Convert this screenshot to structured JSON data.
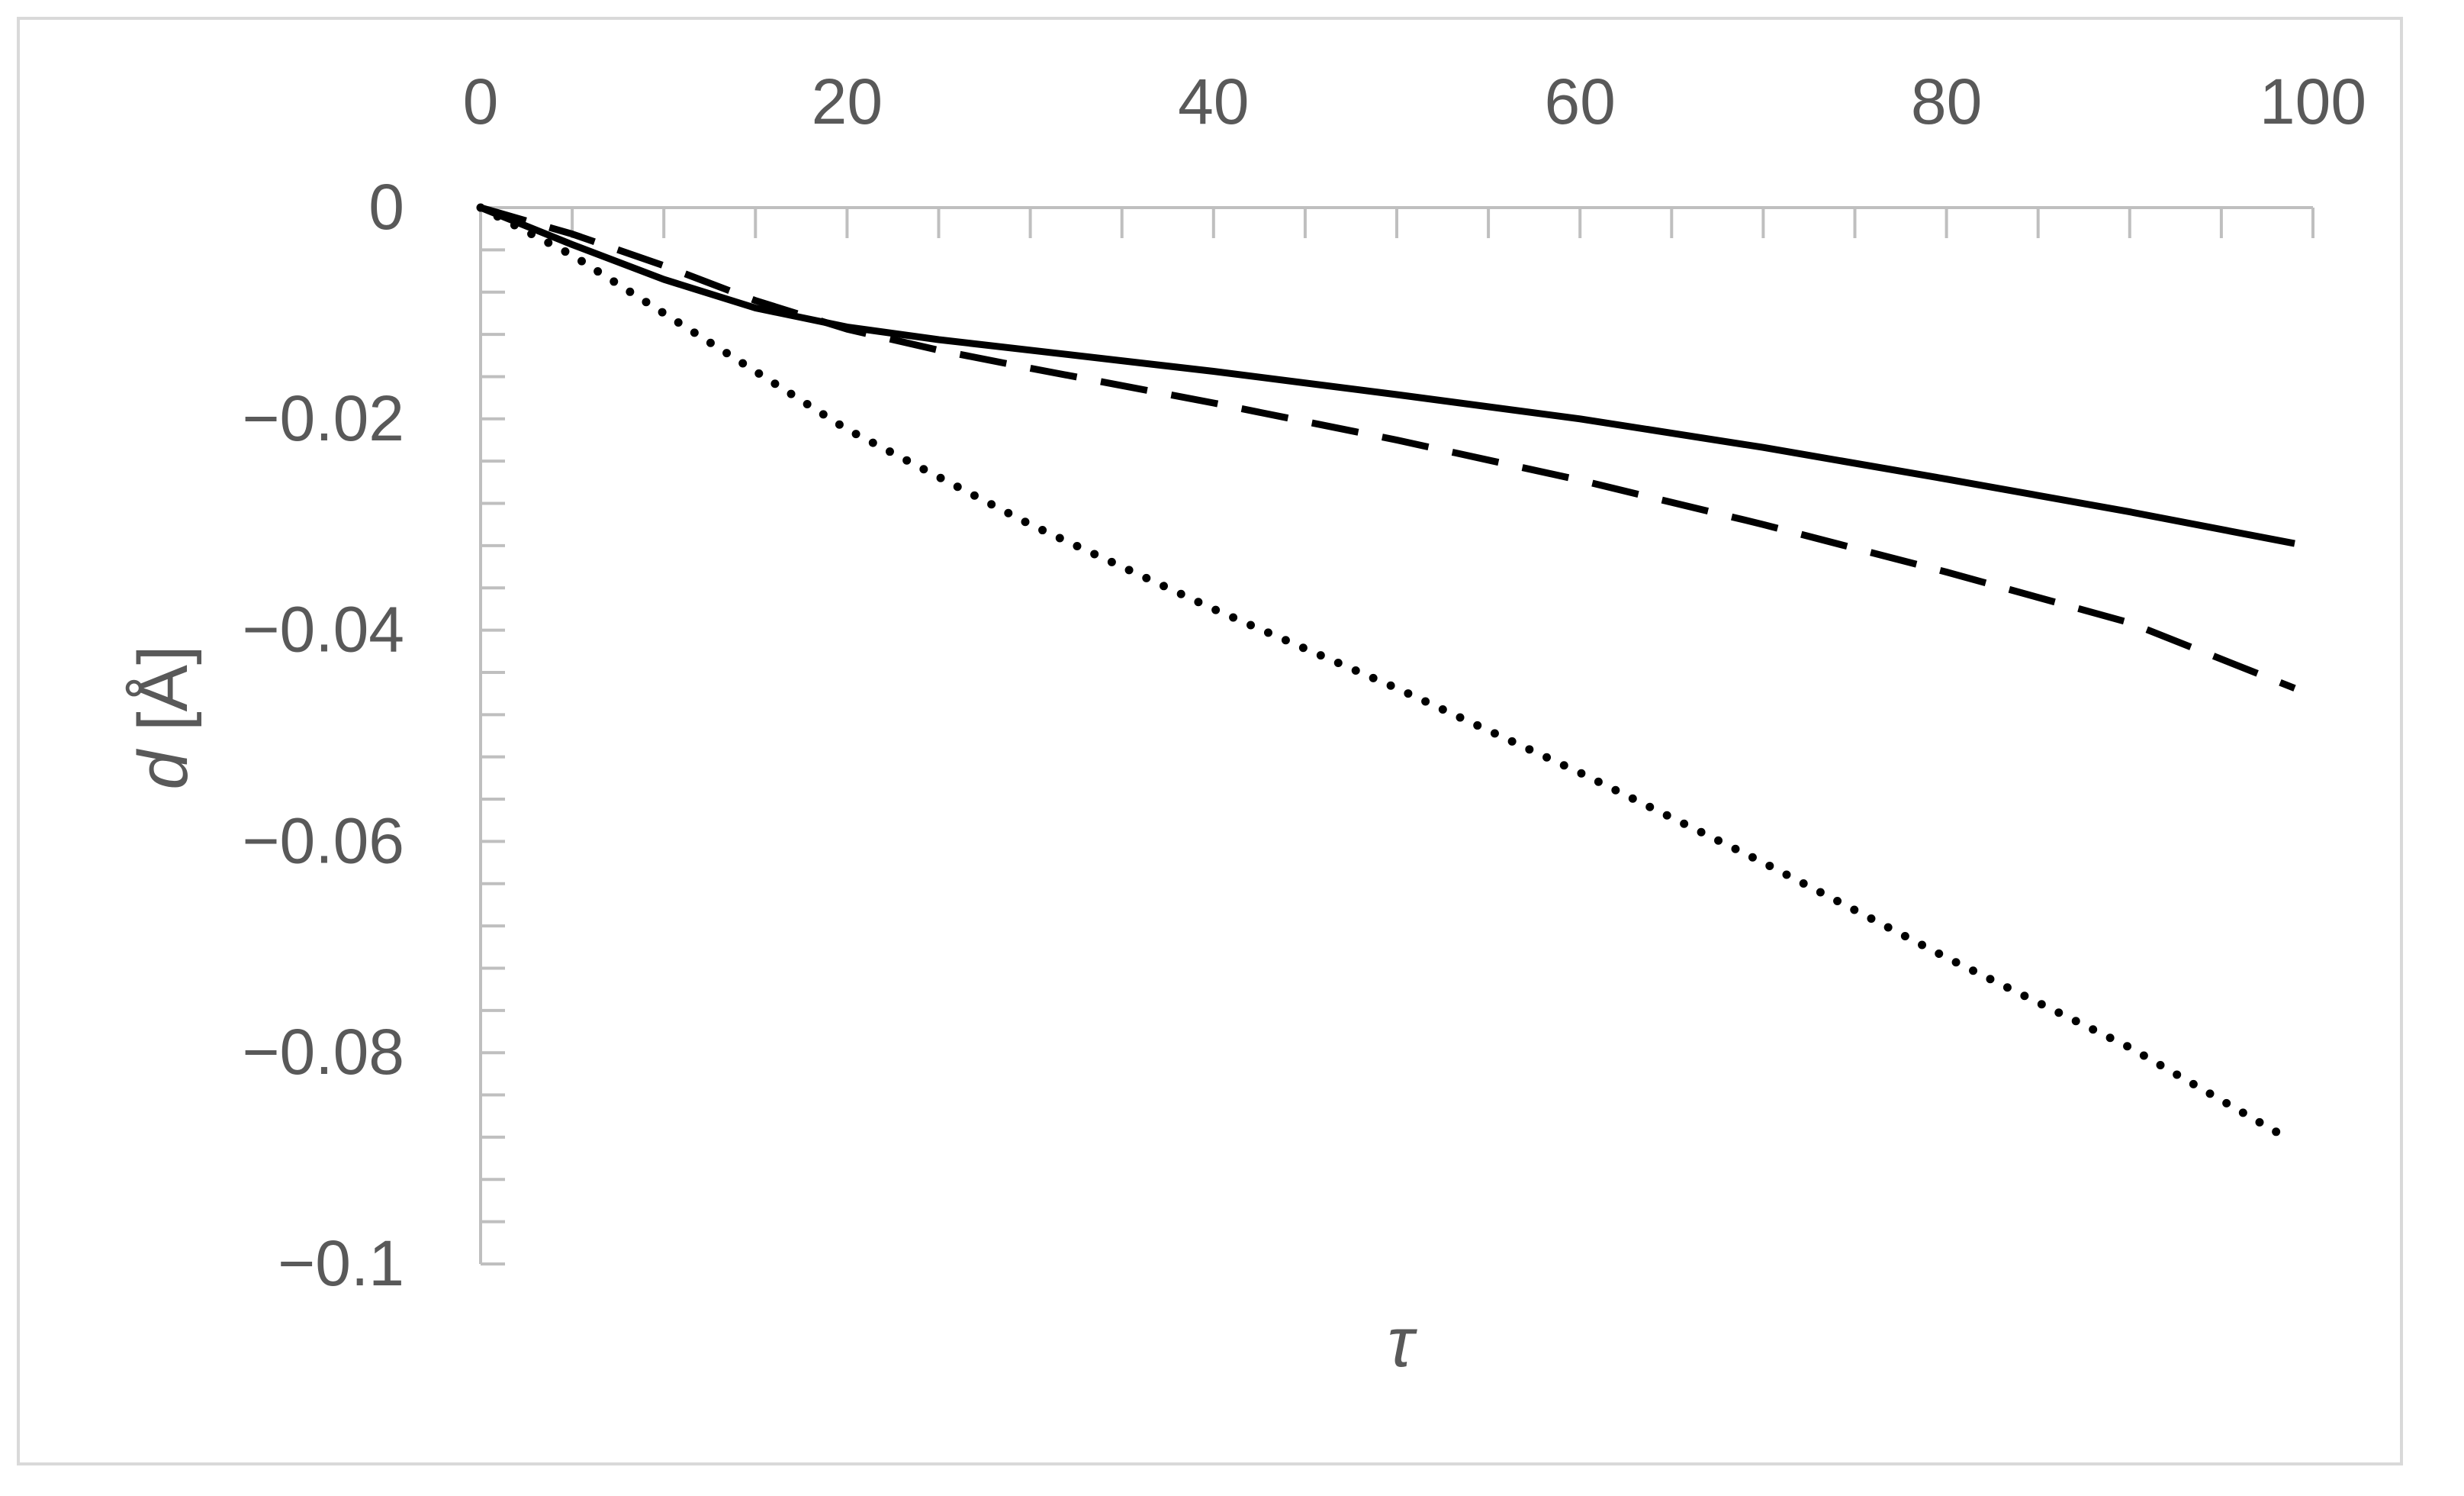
{
  "chart_data": {
    "type": "line",
    "title": "",
    "xlabel": "τ",
    "ylabel_italic": "d",
    "ylabel_unit": " [Å]",
    "xlim": [
      0,
      100
    ],
    "ylim": [
      -0.1,
      0
    ],
    "x_ticks": [
      0,
      20,
      40,
      60,
      80,
      100
    ],
    "x_tick_labels": [
      "0",
      "20",
      "40",
      "60",
      "80",
      "100"
    ],
    "y_ticks": [
      0,
      -0.02,
      -0.04,
      -0.06,
      -0.08,
      -0.1
    ],
    "y_tick_labels": [
      "0",
      "−0.02",
      "−0.04",
      "−0.06",
      "−0.08",
      "−0.1"
    ],
    "x_axis_position": "top",
    "grid": false,
    "legend": "none",
    "series": [
      {
        "style": "solid",
        "color": "#000000",
        "x": [
          0,
          5,
          10,
          15,
          20,
          25,
          30,
          40,
          50,
          60,
          70,
          80,
          90,
          99
        ],
        "y": [
          0,
          -0.0035,
          -0.0068,
          -0.0095,
          -0.0113,
          -0.0125,
          -0.0135,
          -0.0155,
          -0.0177,
          -0.02,
          -0.0227,
          -0.0257,
          -0.0288,
          -0.0318
        ]
      },
      {
        "style": "dashed",
        "color": "#000000",
        "x": [
          0,
          5,
          10,
          15,
          20,
          25,
          30,
          40,
          50,
          60,
          70,
          80,
          90,
          99
        ],
        "y": [
          0,
          -0.0025,
          -0.0055,
          -0.0088,
          -0.0115,
          -0.0135,
          -0.0152,
          -0.0185,
          -0.022,
          -0.0258,
          -0.03,
          -0.0345,
          -0.0393,
          -0.0455
        ]
      },
      {
        "style": "dotted",
        "color": "#000000",
        "x": [
          0,
          5,
          10,
          20,
          30,
          40,
          50,
          60,
          70,
          80,
          90,
          98
        ],
        "y": [
          0,
          -0.0045,
          -0.01,
          -0.021,
          -0.03,
          -0.038,
          -0.0455,
          -0.0535,
          -0.062,
          -0.071,
          -0.0795,
          -0.0875
        ]
      }
    ]
  }
}
